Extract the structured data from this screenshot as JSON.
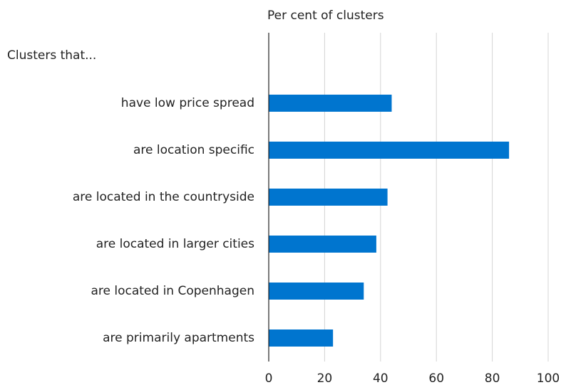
{
  "chart_data": {
    "type": "bar",
    "orientation": "horizontal",
    "x_label": "Per cent of clusters",
    "category_label": "Clusters that...",
    "categories": [
      "have low price spread",
      "are location specific",
      "are located in the countryside",
      "are located in larger cities",
      "are located in Copenhagen",
      "are primarily apartments"
    ],
    "values": [
      44,
      86,
      42.5,
      38.5,
      34,
      23
    ],
    "color": "#0075cf",
    "xlim": [
      0,
      100
    ],
    "xticks": [
      0,
      20,
      40,
      60,
      80,
      100
    ],
    "grid": true
  }
}
